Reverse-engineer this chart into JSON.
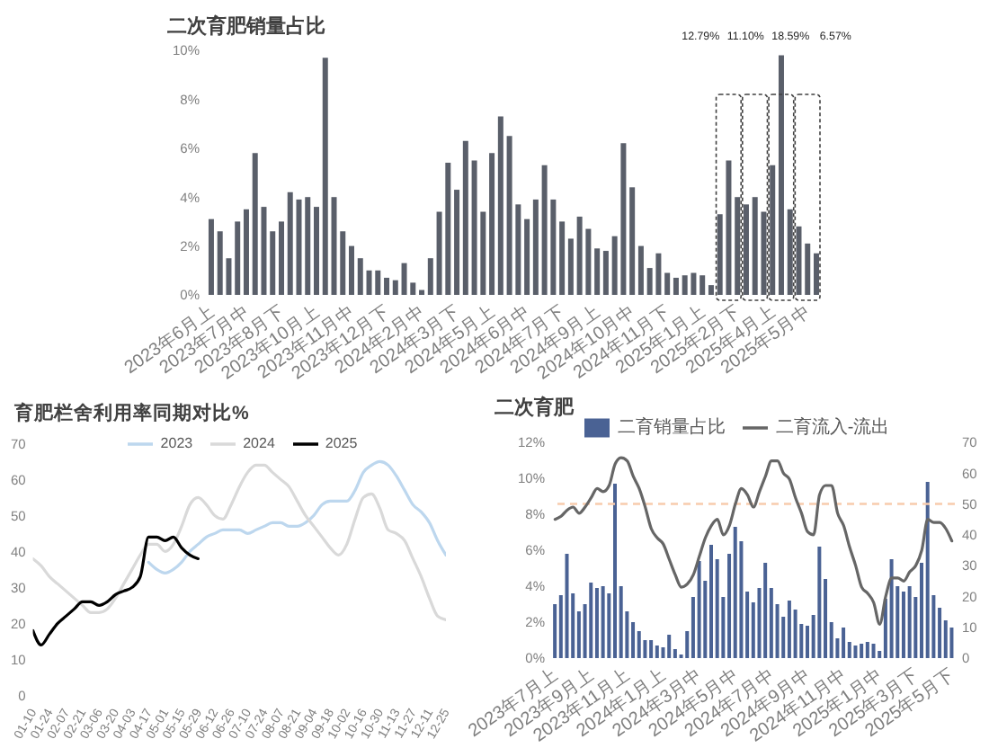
{
  "chart_data": [
    {
      "type": "bar",
      "title": "二次育肥销量占比",
      "categories": [
        "2023年6月上",
        null,
        null,
        null,
        "2023年7月中",
        null,
        null,
        null,
        "2023年8月下",
        null,
        null,
        null,
        "2023年10月上",
        null,
        null,
        null,
        "2023年11月中",
        null,
        null,
        null,
        "2023年12月下",
        null,
        null,
        null,
        "2024年2月中",
        null,
        null,
        null,
        "2024年3月下",
        null,
        null,
        null,
        "2024年5月上",
        null,
        null,
        null,
        "2024年6月中",
        null,
        null,
        null,
        "2024年7月下",
        null,
        null,
        null,
        "2024年9月上",
        null,
        null,
        null,
        "2024年10月中",
        null,
        null,
        null,
        "2024年11月下",
        null,
        null,
        null,
        "2025年1月上",
        null,
        null,
        null,
        "2025年2月下",
        null,
        null,
        null,
        "2025年4月上",
        null,
        null,
        null,
        "2025年5月中",
        null
      ],
      "values": [
        3.1,
        2.6,
        1.5,
        3.0,
        3.5,
        5.8,
        3.6,
        2.6,
        3.0,
        4.2,
        3.9,
        4.0,
        3.6,
        9.7,
        4.0,
        2.6,
        2.0,
        1.5,
        1.0,
        1.0,
        0.7,
        0.6,
        1.3,
        0.5,
        0.2,
        1.5,
        3.4,
        5.4,
        4.3,
        6.3,
        5.5,
        3.4,
        5.8,
        7.3,
        6.5,
        3.7,
        3.1,
        3.9,
        5.3,
        3.9,
        3.0,
        2.3,
        3.2,
        2.7,
        1.9,
        1.8,
        2.4,
        6.2,
        4.4,
        2.0,
        1.1,
        1.7,
        0.9,
        0.7,
        0.8,
        0.9,
        0.8,
        0.4,
        3.3,
        5.5,
        4.0,
        3.7,
        4.0,
        3.4,
        5.3,
        9.8,
        3.5,
        2.8,
        2.1,
        1.7
      ],
      "color": "#5a5f6a",
      "ylim": [
        0,
        10
      ],
      "yticks": [
        {
          "value": 0,
          "label": "0%"
        },
        {
          "value": 2,
          "label": "2%"
        },
        {
          "value": 4,
          "label": "4%"
        },
        {
          "value": 6,
          "label": "6%"
        },
        {
          "value": 8,
          "label": "8%"
        },
        {
          "value": 10,
          "label": "10%"
        }
      ],
      "annotations": [
        "12.79%",
        "11.10%",
        "18.59%",
        "6.57%"
      ]
    },
    {
      "type": "line",
      "title": "育肥栏舍利用率同期对比%",
      "categories": [
        "01-10",
        null,
        "01-24",
        null,
        "02-07",
        null,
        "02-21",
        null,
        "03-06",
        null,
        "03-20",
        null,
        "04-03",
        null,
        "04-17",
        null,
        "05-01",
        null,
        "05-15",
        null,
        "05-29",
        null,
        "06-12",
        null,
        "06-26",
        null,
        "07-10",
        null,
        "07-24",
        null,
        "08-07",
        null,
        "08-21",
        null,
        "09-04",
        null,
        "09-18",
        null,
        "10-02",
        null,
        "10-16",
        null,
        "10-30",
        null,
        "11-13",
        null,
        "11-27",
        null,
        "12-11",
        null,
        "12-25"
      ],
      "series": [
        {
          "name": "2023",
          "color": "#bdd7ee",
          "values": [
            null,
            null,
            null,
            null,
            null,
            null,
            null,
            null,
            null,
            null,
            null,
            null,
            null,
            null,
            37,
            35,
            34,
            35,
            37,
            40,
            42,
            44,
            45,
            46,
            46,
            46,
            45,
            46,
            47,
            48,
            48,
            47,
            47,
            48,
            50,
            53,
            54,
            54,
            54,
            57,
            62,
            64,
            65,
            64,
            61,
            57,
            53,
            51,
            48,
            43,
            39
          ]
        },
        {
          "name": "2024",
          "color": "#d9d9d9",
          "values": [
            38,
            36,
            33,
            31,
            29,
            27,
            25,
            23,
            23,
            24,
            27,
            31,
            35,
            39,
            42,
            42,
            40,
            42,
            47,
            53,
            55,
            53,
            50,
            49,
            53,
            58,
            62,
            64,
            64,
            62,
            60,
            58,
            54,
            50,
            47,
            44,
            41,
            39,
            42,
            49,
            55,
            56,
            52,
            46,
            45,
            43,
            38,
            33,
            27,
            22,
            21
          ]
        },
        {
          "name": "2025",
          "color": "#000000",
          "values": [
            18,
            14,
            17,
            20,
            22,
            24,
            26,
            26,
            25,
            26,
            28,
            29,
            30,
            33,
            44,
            44,
            43,
            44,
            41,
            39,
            38,
            null,
            null,
            null,
            null,
            null,
            null,
            null,
            null,
            null,
            null,
            null,
            null,
            null,
            null,
            null,
            null,
            null,
            null,
            null,
            null,
            null,
            null,
            null,
            null,
            null,
            null,
            null,
            null,
            null,
            null
          ]
        }
      ],
      "ylim": [
        0,
        70
      ],
      "yticks": [
        0,
        10,
        20,
        30,
        40,
        50,
        60,
        70
      ],
      "legend": "top"
    },
    {
      "type": "bar",
      "title": "二次育肥",
      "categories": [
        "2023年7月上",
        null,
        null,
        null,
        null,
        null,
        "2023年9月上",
        null,
        null,
        null,
        null,
        null,
        "2023年11月上",
        null,
        null,
        null,
        null,
        null,
        "2024年1月上",
        null,
        null,
        null,
        null,
        null,
        "2024年3月中",
        null,
        null,
        null,
        null,
        null,
        "2024年5月中",
        null,
        null,
        null,
        null,
        null,
        "2024年7月中",
        null,
        null,
        null,
        null,
        null,
        "2024年9月中",
        null,
        null,
        null,
        null,
        null,
        "2024年11月中",
        null,
        null,
        null,
        null,
        null,
        "2025年1月中",
        null,
        null,
        null,
        null,
        null,
        "2025年3月下",
        null,
        null,
        null,
        null,
        null,
        "2025年5月下"
      ],
      "series": [
        {
          "name": "二育销量占比",
          "color": "#4a6294",
          "values": [
            3.0,
            3.5,
            5.8,
            3.6,
            2.6,
            3.0,
            4.2,
            3.9,
            4.0,
            3.6,
            9.7,
            4.0,
            2.6,
            2.0,
            1.5,
            1.0,
            1.0,
            0.7,
            0.6,
            1.3,
            0.5,
            0.2,
            1.5,
            3.4,
            5.4,
            4.3,
            6.3,
            5.5,
            3.4,
            5.8,
            7.3,
            6.5,
            3.7,
            3.1,
            3.9,
            5.3,
            3.9,
            3.0,
            2.3,
            3.2,
            2.7,
            1.9,
            1.8,
            2.4,
            6.2,
            4.4,
            2.0,
            1.1,
            1.7,
            0.9,
            0.7,
            0.8,
            0.9,
            0.8,
            0.4,
            3.3,
            5.5,
            4.0,
            3.7,
            4.0,
            3.4,
            5.3,
            9.8,
            3.5,
            2.8,
            2.1,
            1.7
          ]
        },
        {
          "name": "二育流入-流出",
          "type": "line",
          "axis": "y2",
          "color": "#666666",
          "values": [
            45,
            46,
            48,
            49,
            47,
            49,
            52,
            55,
            54,
            56,
            63,
            65,
            64,
            59,
            55,
            49,
            42,
            39,
            37,
            32,
            27,
            23,
            24,
            27,
            33,
            39,
            43,
            45,
            40,
            43,
            50,
            55,
            53,
            49,
            54,
            59,
            64,
            64,
            60,
            58,
            52,
            47,
            41,
            40,
            53,
            56,
            56,
            47,
            43,
            36,
            30,
            23,
            21,
            18,
            11,
            20,
            26,
            26,
            25,
            28,
            30,
            35,
            45,
            44,
            44,
            42,
            38
          ]
        }
      ],
      "ylim": [
        0,
        12
      ],
      "yticks": [
        {
          "value": 0,
          "label": "0%"
        },
        {
          "value": 2,
          "label": "2%"
        },
        {
          "value": 4,
          "label": "4%"
        },
        {
          "value": 6,
          "label": "6%"
        },
        {
          "value": 8,
          "label": "8%"
        },
        {
          "value": 10,
          "label": "10%"
        },
        {
          "value": 12,
          "label": "12%"
        }
      ],
      "y2lim": [
        0,
        70
      ],
      "y2ticks": [
        0,
        10,
        20,
        30,
        40,
        50,
        60,
        70
      ],
      "ref_lines": [
        {
          "axis": "y2",
          "value": 50,
          "color": "#f8cbad",
          "line_style": "dashed"
        }
      ],
      "legend": "top"
    }
  ]
}
